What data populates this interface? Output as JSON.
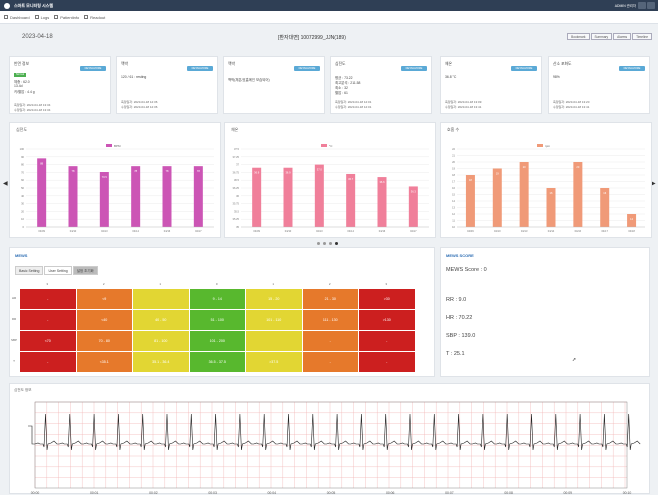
{
  "topbar": {
    "title": "스마트 모니터링 시스템",
    "user": "ADMIN 관리자"
  },
  "nav": [
    {
      "label": "Dashboard"
    },
    {
      "label": "Logs"
    },
    {
      "label": "Patientinfo"
    },
    {
      "label": "Readout"
    }
  ],
  "header": {
    "date": "2023-04-18",
    "patient": "[환자대면] 10072999_JJN(189)",
    "tabs": [
      "Bookmark",
      "Summary",
      "Alarms",
      "Timeline"
    ]
  },
  "vitals": [
    {
      "label": "반먼 정보",
      "button": "DETAILMORE",
      "badge": "Normal",
      "lines": [
        "체중 : 62.0",
        "13.4d",
        "키/혈압 : 4.4 g"
      ],
      "meta": [
        "측정일자: 2023-04-18 13:34",
        "수정일자: 2023-04-18 13:34"
      ]
    },
    {
      "label": "맥박",
      "button": "DETAILMORE",
      "lines": [
        "120 / 61 : resting"
      ],
      "meta": [
        "측정일자: 2023-04-18 12:36",
        "수정일자: 2023-04-18 12:36"
      ]
    },
    {
      "label": "맥박",
      "button": "DETAILMORE",
      "lines": [
        "맥박(체온/호흡메인 보습되어)"
      ],
      "meta": []
    },
    {
      "label": "심전도",
      "button": "DETAILMORE",
      "lines": [
        "평균 : 73.22",
        "최고분석 : 211.58",
        "최소 : 32",
        "혈압 : 61"
      ],
      "meta": [
        "측정일자: 2023-04-18 12:01",
        "수정일자: 2023-04-18 12:01"
      ]
    },
    {
      "label": "체온",
      "button": "DETAILMORE",
      "lines": [
        "36.8 °C"
      ],
      "meta": [
        "측정일자: 2023-04-18 13:09",
        "수정일자: 2023-04-18 13:41"
      ]
    },
    {
      "label": "산소 포화도",
      "button": "DETAILMORE",
      "lines": [
        "98%"
      ],
      "meta": [
        "측정일자: 2023-04-18 13:20",
        "수정일자: 2023-04-18 13:41"
      ]
    }
  ],
  "charts": [
    {
      "title": "심전도",
      "legend": "BPM",
      "color": "#cc55b5"
    },
    {
      "title": "체온",
      "legend": "°C",
      "color": "#f07f9a"
    },
    {
      "title": "호흡 수",
      "legend": "rpm",
      "color": "#f09a78"
    }
  ],
  "chart_data": [
    {
      "type": "bar",
      "title": "심전도",
      "categories": [
        "04/09",
        "04/10",
        "04/13",
        "04/14",
        "04/16",
        "04/17"
      ],
      "values": [
        88,
        78,
        70.5,
        78,
        78,
        78
      ],
      "data_labels": [
        "88",
        "78",
        "70.5",
        "78",
        "78",
        "78"
      ],
      "ylim": [
        0,
        100
      ],
      "yticks": [
        0,
        10,
        20,
        30,
        40,
        50,
        60,
        70,
        80,
        90,
        100
      ]
    },
    {
      "type": "bar",
      "title": "체온",
      "categories": [
        "04/09",
        "04/10",
        "04/13",
        "04/14",
        "04/16",
        "04/17"
      ],
      "values": [
        36.9,
        36.9,
        37.0,
        36.7,
        36.6,
        36.3
      ],
      "data_labels": [
        "36.9",
        "36.9",
        "37.0",
        "36.7",
        "36.6",
        "36.3"
      ],
      "ylim": [
        35,
        37.5
      ],
      "yticks": [
        35.0,
        35.25,
        35.5,
        35.75,
        36.0,
        36.25,
        36.5,
        36.75,
        37.0,
        37.25,
        37.5
      ]
    },
    {
      "type": "bar",
      "title": "호흡 수",
      "categories": [
        "04/09",
        "04/10",
        "04/13",
        "04/14",
        "04/16",
        "04/17",
        "04/18"
      ],
      "values": [
        18,
        19,
        20,
        16,
        20,
        16,
        12
      ],
      "data_labels": [
        "18",
        "19",
        "20",
        "16",
        "20",
        "16",
        "12"
      ],
      "ylim": [
        10,
        22
      ],
      "yticks": [
        10,
        11,
        12,
        13,
        14,
        15,
        16,
        17,
        18,
        19,
        20,
        21,
        22
      ]
    }
  ],
  "mews": {
    "title": "MEWS",
    "tabs": [
      "Basic Setting",
      "User Setting",
      "설정 초기화"
    ],
    "score_cols": [
      "3",
      "2",
      "1",
      "0",
      "1",
      "2",
      "3"
    ],
    "row_labels": [
      "HR",
      "RR",
      "SBP",
      "T"
    ],
    "rows": [
      [
        "-",
        "<9",
        "",
        "9 - 14",
        "15 - 20",
        "21 - 30",
        ">30"
      ],
      [
        "-",
        "<40",
        "40 - 50",
        "51 - 100",
        "101 - 110",
        "111 - 130",
        ">130"
      ],
      [
        "<70",
        "70 - 80",
        "81 - 100",
        "101 - 200",
        "",
        "-",
        "-"
      ],
      [
        "-",
        "<35.1",
        "35.1 - 36.4",
        "36.5 - 37.5",
        ">37.5",
        "-",
        "-"
      ]
    ]
  },
  "score": {
    "title": "MEWS SCORE",
    "mews": "MEWS Score : 0",
    "rr": "RR : 9.0",
    "hr": "HR : 70.22",
    "sbp": "SBP : 139.0",
    "t": "T : 25.1"
  },
  "ecg": {
    "title": "심전도 정보",
    "times": [
      "00:00",
      "00:01",
      "00:02",
      "00:03",
      "00:04",
      "00:05",
      "00:06",
      "00:07",
      "00:08",
      "00:09",
      "00:10"
    ]
  },
  "colors": {
    "red": "#cc1f1f",
    "orange": "#e6792b",
    "yellow": "#e2d633",
    "green": "#58b82e",
    "grid": "#f2b6b6"
  }
}
